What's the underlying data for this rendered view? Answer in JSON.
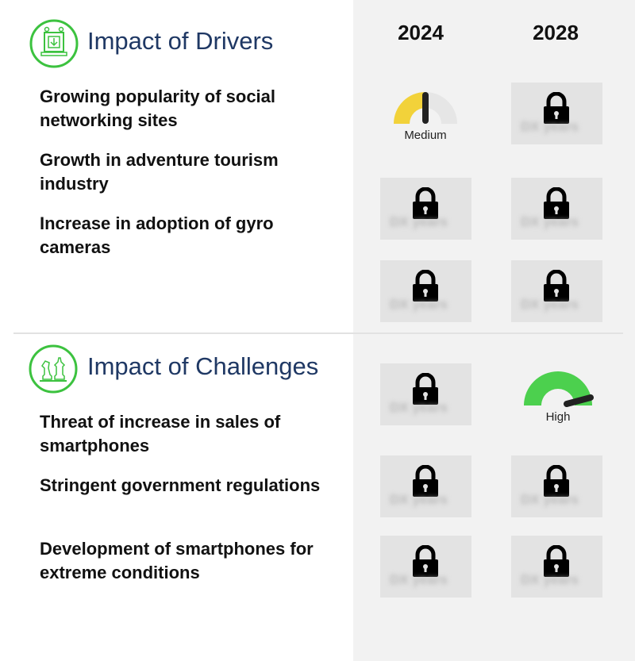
{
  "years": [
    "2024",
    "2028"
  ],
  "drivers": {
    "title": "Impact of Drivers",
    "icon": "drivers-icon",
    "items": [
      {
        "text": "Growing popularity of social networking sites"
      },
      {
        "text": "Growth in adventure tourism industry"
      },
      {
        "text": "Increase in adoption of gyro cameras"
      }
    ],
    "gauge_2024_first": {
      "label": "Medium",
      "level": 0.5,
      "color": "#f2d23a"
    }
  },
  "challenges": {
    "title": "Impact of Challenges",
    "icon": "challenges-icon",
    "items": [
      {
        "text": "Threat of increase in sales of smartphones"
      },
      {
        "text": "Stringent government regulations"
      },
      {
        "text": "Development of smartphones for extreme conditions"
      }
    ],
    "gauge_2028_first": {
      "label": "High",
      "level": 1.0,
      "color": "#4cd04e"
    }
  },
  "locked_placeholder": "DX years"
}
